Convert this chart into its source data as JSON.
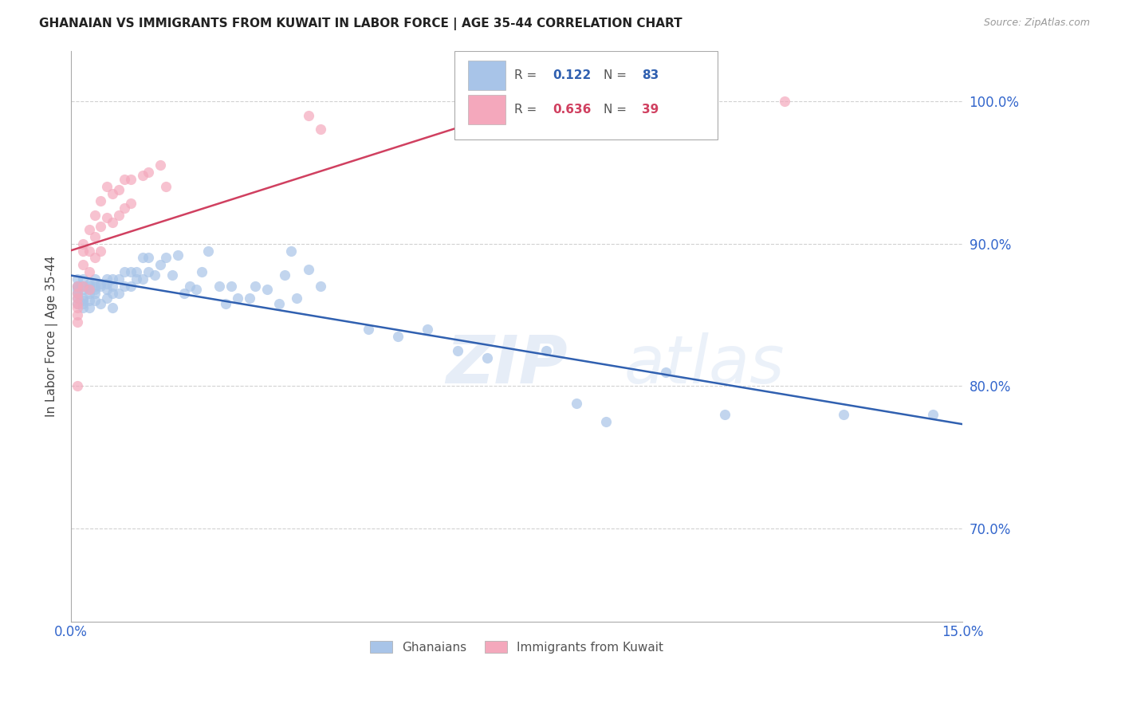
{
  "title": "GHANAIAN VS IMMIGRANTS FROM KUWAIT IN LABOR FORCE | AGE 35-44 CORRELATION CHART",
  "source": "Source: ZipAtlas.com",
  "ylabel": "In Labor Force | Age 35-44",
  "watermark": "ZIPatlas",
  "xmin": 0.0,
  "xmax": 0.15,
  "ymin": 0.635,
  "ymax": 1.035,
  "yticks": [
    0.7,
    0.8,
    0.9,
    1.0
  ],
  "ytick_labels": [
    "70.0%",
    "80.0%",
    "90.0%",
    "100.0%"
  ],
  "xticks": [
    0.0,
    0.03,
    0.06,
    0.09,
    0.12,
    0.15
  ],
  "xtick_labels": [
    "0.0%",
    "",
    "",
    "",
    "",
    "15.0%"
  ],
  "ghanaians_color": "#a8c4e8",
  "kuwait_color": "#f4a8bc",
  "blue_line_color": "#3060b0",
  "pink_line_color": "#d04060",
  "scatter_alpha": 0.7,
  "scatter_size": 90,
  "blue_R": 0.122,
  "blue_N": 83,
  "pink_R": 0.636,
  "pink_N": 39,
  "ghanaians_x": [
    0.001,
    0.001,
    0.001,
    0.001,
    0.001,
    0.001,
    0.001,
    0.002,
    0.002,
    0.002,
    0.002,
    0.002,
    0.002,
    0.002,
    0.003,
    0.003,
    0.003,
    0.003,
    0.003,
    0.003,
    0.004,
    0.004,
    0.004,
    0.004,
    0.004,
    0.005,
    0.005,
    0.005,
    0.006,
    0.006,
    0.006,
    0.006,
    0.007,
    0.007,
    0.007,
    0.007,
    0.008,
    0.008,
    0.009,
    0.009,
    0.01,
    0.01,
    0.011,
    0.011,
    0.012,
    0.012,
    0.013,
    0.013,
    0.014,
    0.015,
    0.016,
    0.017,
    0.018,
    0.019,
    0.02,
    0.021,
    0.022,
    0.023,
    0.025,
    0.026,
    0.027,
    0.028,
    0.03,
    0.031,
    0.033,
    0.035,
    0.036,
    0.037,
    0.038,
    0.04,
    0.042,
    0.05,
    0.055,
    0.06,
    0.065,
    0.07,
    0.08,
    0.085,
    0.09,
    0.1,
    0.11,
    0.13,
    0.145
  ],
  "ghanaians_y": [
    0.87,
    0.875,
    0.87,
    0.868,
    0.865,
    0.862,
    0.858,
    0.875,
    0.87,
    0.868,
    0.862,
    0.86,
    0.858,
    0.855,
    0.872,
    0.87,
    0.868,
    0.865,
    0.86,
    0.855,
    0.875,
    0.87,
    0.868,
    0.865,
    0.86,
    0.872,
    0.87,
    0.858,
    0.875,
    0.872,
    0.868,
    0.862,
    0.875,
    0.87,
    0.865,
    0.855,
    0.875,
    0.865,
    0.88,
    0.87,
    0.88,
    0.87,
    0.88,
    0.875,
    0.89,
    0.875,
    0.89,
    0.88,
    0.878,
    0.885,
    0.89,
    0.878,
    0.892,
    0.865,
    0.87,
    0.868,
    0.88,
    0.895,
    0.87,
    0.858,
    0.87,
    0.862,
    0.862,
    0.87,
    0.868,
    0.858,
    0.878,
    0.895,
    0.862,
    0.882,
    0.87,
    0.84,
    0.835,
    0.84,
    0.825,
    0.82,
    0.825,
    0.788,
    0.775,
    0.81,
    0.78,
    0.78,
    0.78
  ],
  "kuwait_x": [
    0.001,
    0.001,
    0.001,
    0.001,
    0.001,
    0.001,
    0.001,
    0.001,
    0.002,
    0.002,
    0.002,
    0.002,
    0.003,
    0.003,
    0.003,
    0.003,
    0.004,
    0.004,
    0.004,
    0.005,
    0.005,
    0.005,
    0.006,
    0.006,
    0.007,
    0.007,
    0.008,
    0.008,
    0.009,
    0.009,
    0.01,
    0.01,
    0.012,
    0.013,
    0.015,
    0.016,
    0.04,
    0.042,
    0.12
  ],
  "kuwait_y": [
    0.87,
    0.865,
    0.862,
    0.858,
    0.855,
    0.85,
    0.845,
    0.8,
    0.9,
    0.895,
    0.885,
    0.87,
    0.91,
    0.895,
    0.88,
    0.868,
    0.92,
    0.905,
    0.89,
    0.93,
    0.912,
    0.895,
    0.94,
    0.918,
    0.935,
    0.915,
    0.938,
    0.92,
    0.945,
    0.925,
    0.945,
    0.928,
    0.948,
    0.95,
    0.955,
    0.94,
    0.99,
    0.98,
    1.0
  ]
}
